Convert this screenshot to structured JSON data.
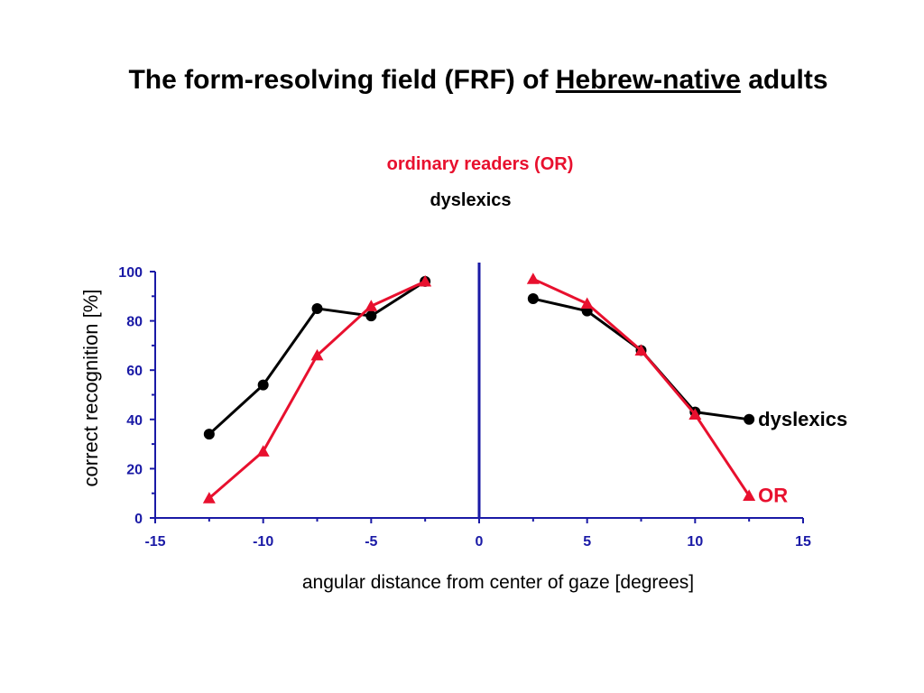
{
  "slide": {
    "title_pre": "The form-resolving field (FRF) of ",
    "title_underlined": "Hebrew-native",
    "title_post": " adults"
  },
  "legend_titles": {
    "or": "ordinary readers (OR)",
    "dyslexics": "dyslexics"
  },
  "chart_data": {
    "type": "line",
    "xlabel": "angular distance from center of gaze  [degrees]",
    "ylabel": "correct recognition  [%]",
    "xlim": [
      -15,
      15
    ],
    "ylim": [
      0,
      100
    ],
    "x_ticks": [
      -15,
      -10,
      -5,
      0,
      5,
      10,
      15
    ],
    "y_ticks": [
      0,
      20,
      40,
      60,
      80,
      100
    ],
    "center_line_x": 0,
    "grid": false,
    "series": [
      {
        "name": "dyslexics",
        "label": "dyslexics",
        "color": "#000000",
        "marker": "circle",
        "segments": [
          {
            "x": [
              -12.5,
              -10,
              -7.5,
              -5,
              -2.5
            ],
            "y": [
              34,
              54,
              85,
              82,
              96
            ]
          },
          {
            "x": [
              2.5,
              5,
              7.5,
              10,
              12.5
            ],
            "y": [
              89,
              84,
              68,
              43,
              40
            ]
          }
        ]
      },
      {
        "name": "OR",
        "label": "OR",
        "color": "#e8102e",
        "marker": "triangle",
        "segments": [
          {
            "x": [
              -12.5,
              -10,
              -7.5,
              -5,
              -2.5
            ],
            "y": [
              8,
              27,
              66,
              86,
              96
            ]
          },
          {
            "x": [
              2.5,
              5,
              7.5,
              10,
              12.5
            ],
            "y": [
              97,
              87,
              68,
              42,
              9
            ]
          }
        ]
      }
    ],
    "axis_color": "#1a1aa6"
  }
}
